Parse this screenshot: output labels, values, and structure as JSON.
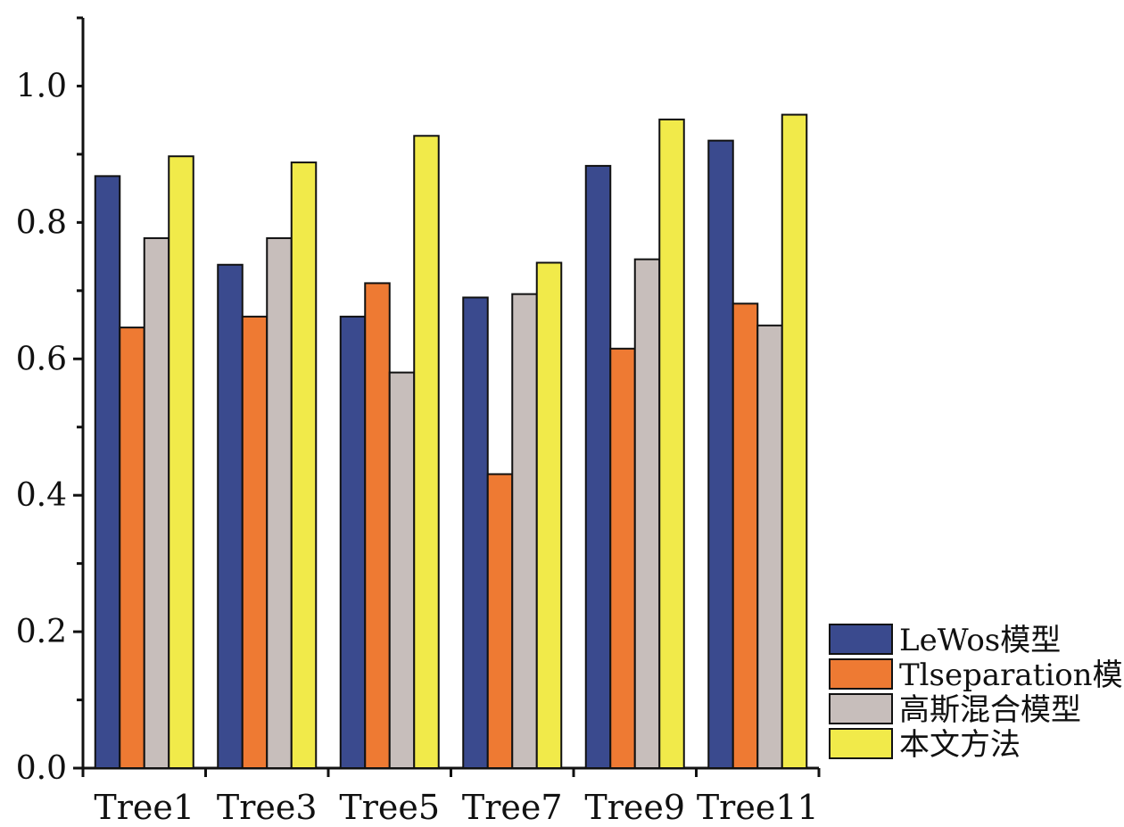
{
  "chart_data": {
    "type": "bar",
    "title": "",
    "xlabel": "",
    "ylabel": "",
    "categories": [
      "Tree1",
      "Tree3",
      "Tree5",
      "Tree7",
      "Tree9",
      "Tree11"
    ],
    "series": [
      {
        "name": "LeWos模型",
        "color": "#3a4a8e",
        "values": [
          0.868,
          0.738,
          0.662,
          0.69,
          0.883,
          0.92
        ]
      },
      {
        "name": "Tlseparation模型",
        "color": "#ee7a33",
        "values": [
          0.646,
          0.662,
          0.711,
          0.431,
          0.615,
          0.681
        ]
      },
      {
        "name": "高斯混合模型",
        "color": "#c7bebb",
        "values": [
          0.777,
          0.777,
          0.58,
          0.695,
          0.746,
          0.649
        ]
      },
      {
        "name": "本文方法",
        "color": "#f1ea4a",
        "values": [
          0.897,
          0.888,
          0.927,
          0.741,
          0.951,
          0.958
        ]
      }
    ],
    "ylim": [
      0,
      1.1
    ],
    "yticks": [
      "0.0",
      "0.2",
      "0.4",
      "0.6",
      "0.8",
      "1.0"
    ],
    "grid": false,
    "legend_position": "bottom-right"
  }
}
